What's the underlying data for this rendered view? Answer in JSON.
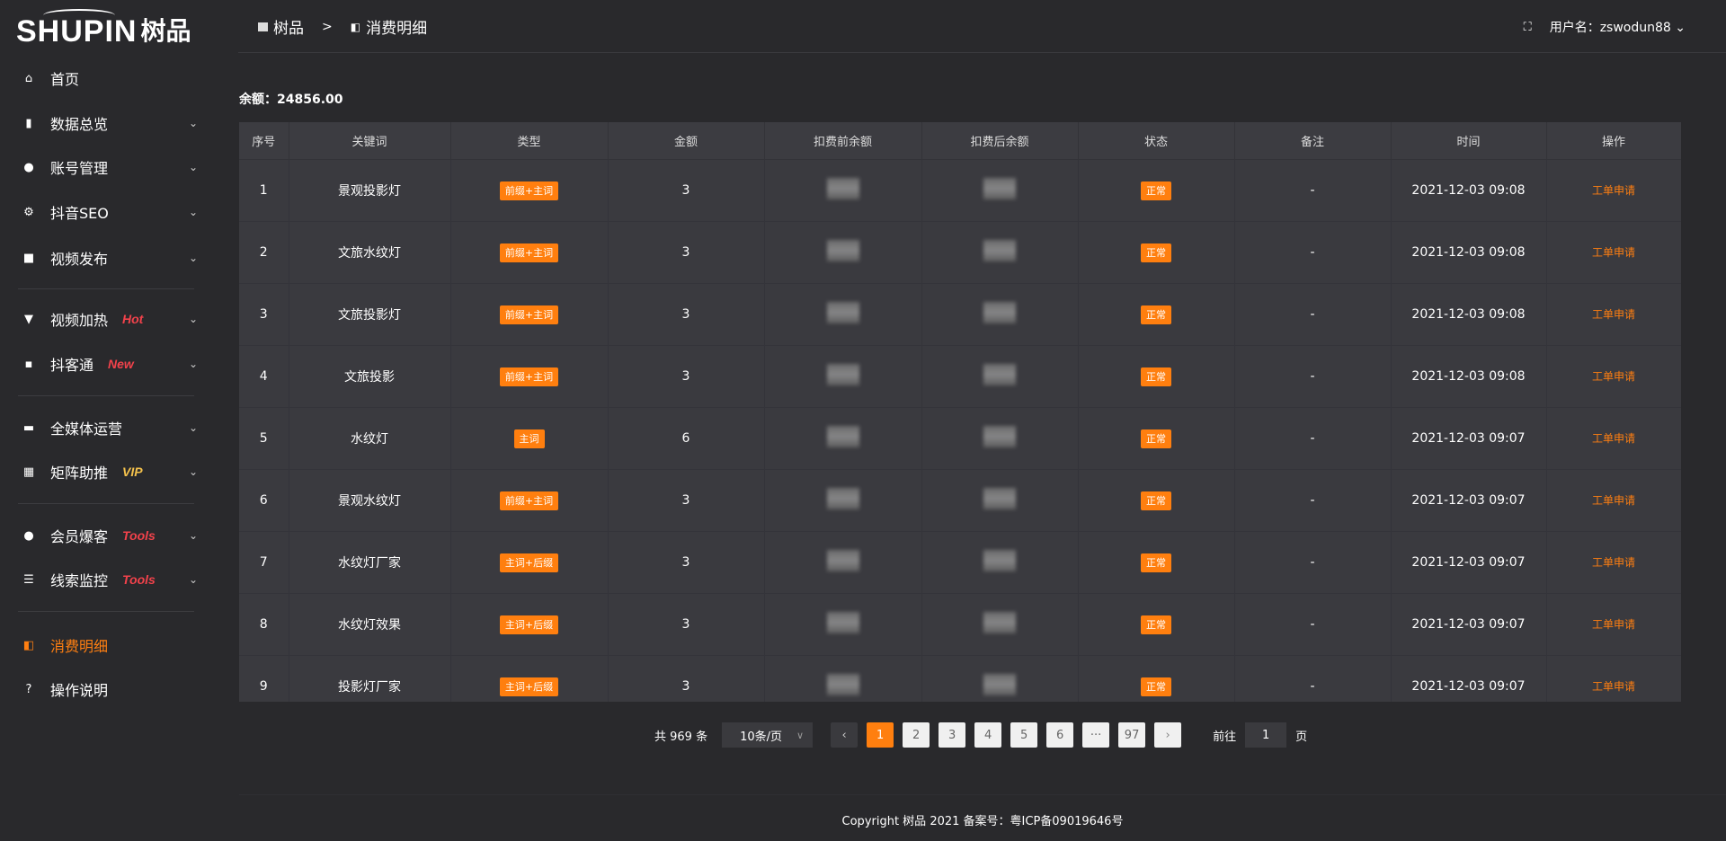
{
  "logo": {
    "en": "SHUPIN",
    "cn": "树品"
  },
  "sidebar": {
    "items": [
      {
        "label": "首页",
        "icon": "home-icon",
        "glyph": "⌂"
      },
      {
        "label": "数据总览",
        "icon": "bar-chart-icon",
        "glyph": "▮",
        "chev": true
      },
      {
        "label": "账号管理",
        "icon": "user-icon",
        "glyph": "●",
        "chev": true
      },
      {
        "label": "抖音SEO",
        "icon": "gear-icon",
        "glyph": "⚙",
        "chev": true
      },
      {
        "label": "视频发布",
        "icon": "video-icon",
        "glyph": "■",
        "chev": true
      },
      {
        "label": "视频加热",
        "icon": "board-icon",
        "glyph": "▼",
        "tag": "Hot",
        "tag_color": "#f2424b",
        "chev": true
      },
      {
        "label": "抖客通",
        "icon": "chat-icon",
        "glyph": "▪",
        "tag": "New",
        "tag_color": "#f2424b",
        "chev": true
      },
      {
        "label": "全媒体运营",
        "icon": "monitor-icon",
        "glyph": "▬",
        "chev": true
      },
      {
        "label": "矩阵助推",
        "icon": "grid-icon",
        "glyph": "▦",
        "tag": "VIP",
        "tag_color": "#f5c24c",
        "chev": true
      },
      {
        "label": "会员爆客",
        "icon": "user-icon",
        "glyph": "●",
        "tag": "Tools",
        "tag_color": "#f2424b",
        "chev": true
      },
      {
        "label": "线索监控",
        "icon": "sliders-icon",
        "glyph": "☰",
        "tag": "Tools",
        "tag_color": "#f2424b",
        "chev": true
      },
      {
        "label": "消费明细",
        "icon": "wallet-icon",
        "glyph": "◧",
        "active": true
      },
      {
        "label": "操作说明",
        "icon": "help-icon",
        "glyph": "?"
      }
    ]
  },
  "header": {
    "crumb_root": "树品",
    "crumb_sep": ">",
    "crumb_current": "消费明细",
    "user": "用户名：zswodun88"
  },
  "balance": "余额：24856.00",
  "table": {
    "columns": [
      "序号",
      "关键词",
      "类型",
      "金额",
      "扣费前余额",
      "扣费后余额",
      "状态",
      "备注",
      "时间",
      "操作"
    ],
    "rows": [
      {
        "no": "1",
        "kw": "景观投影灯",
        "type": "前缀+主词",
        "amount": "3",
        "status": "正常",
        "note": "-",
        "time": "2021-12-03 09:08",
        "op": "工单申请"
      },
      {
        "no": "2",
        "kw": "文旅水纹灯",
        "type": "前缀+主词",
        "amount": "3",
        "status": "正常",
        "note": "-",
        "time": "2021-12-03 09:08",
        "op": "工单申请"
      },
      {
        "no": "3",
        "kw": "文旅投影灯",
        "type": "前缀+主词",
        "amount": "3",
        "status": "正常",
        "note": "-",
        "time": "2021-12-03 09:08",
        "op": "工单申请"
      },
      {
        "no": "4",
        "kw": "文旅投影",
        "type": "前缀+主词",
        "amount": "3",
        "status": "正常",
        "note": "-",
        "time": "2021-12-03 09:08",
        "op": "工单申请"
      },
      {
        "no": "5",
        "kw": "水纹灯",
        "type": "主词",
        "amount": "6",
        "status": "正常",
        "note": "-",
        "time": "2021-12-03 09:07",
        "op": "工单申请"
      },
      {
        "no": "6",
        "kw": "景观水纹灯",
        "type": "前缀+主词",
        "amount": "3",
        "status": "正常",
        "note": "-",
        "time": "2021-12-03 09:07",
        "op": "工单申请"
      },
      {
        "no": "7",
        "kw": "水纹灯厂家",
        "type": "主词+后缀",
        "amount": "3",
        "status": "正常",
        "note": "-",
        "time": "2021-12-03 09:07",
        "op": "工单申请"
      },
      {
        "no": "8",
        "kw": "水纹灯效果",
        "type": "主词+后缀",
        "amount": "3",
        "status": "正常",
        "note": "-",
        "time": "2021-12-03 09:07",
        "op": "工单申请"
      },
      {
        "no": "9",
        "kw": "投影灯厂家",
        "type": "主词+后缀",
        "amount": "3",
        "status": "正常",
        "note": "-",
        "time": "2021-12-03 09:07",
        "op": "工单申请"
      }
    ]
  },
  "pagination": {
    "total": "共 969 条",
    "page_size": "10条/页",
    "pages": [
      "1",
      "2",
      "3",
      "4",
      "5",
      "6",
      "···",
      "97"
    ],
    "current": "1",
    "goto_label": "前往",
    "goto_value": "1",
    "goto_suffix": "页"
  },
  "footer": "Copyright 树品 2021 备案号：粤ICP备09019646号",
  "colors": {
    "accent": "#ff7f0f",
    "bg": "#29292c",
    "table": "#3a3a3f"
  }
}
